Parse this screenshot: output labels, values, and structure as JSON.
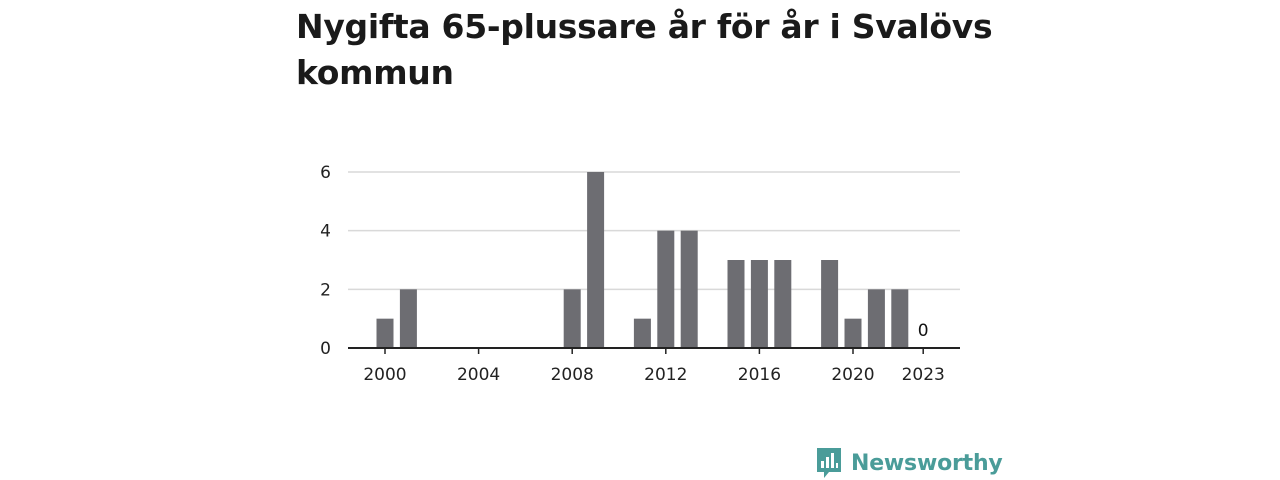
{
  "title": "Nygifta 65-plussare år för år i Svalövs kommun",
  "brand": {
    "name": "Newsworthy"
  },
  "colors": {
    "bar": "#6d6d72",
    "grid": "#d9d9d9",
    "axis": "#222222",
    "brand": "#4a9c99"
  },
  "chart_data": {
    "type": "bar",
    "title": "Nygifta 65-plussare år för år i Svalövs kommun",
    "x": [
      2000,
      2001,
      2002,
      2003,
      2004,
      2005,
      2006,
      2007,
      2008,
      2009,
      2010,
      2011,
      2012,
      2013,
      2014,
      2015,
      2016,
      2017,
      2018,
      2019,
      2020,
      2021,
      2022,
      2023
    ],
    "values": [
      1,
      2,
      0,
      0,
      0,
      0,
      0,
      0,
      2,
      6,
      0,
      1,
      4,
      4,
      0,
      3,
      3,
      3,
      0,
      3,
      1,
      2,
      2,
      0
    ],
    "xticks": [
      "2000",
      "2004",
      "2008",
      "2012",
      "2016",
      "2020",
      "2023"
    ],
    "yticks": [
      "0",
      "2",
      "4",
      "6"
    ],
    "ylim": [
      0,
      6
    ],
    "annotations": [
      {
        "x": 2023,
        "text": "0"
      }
    ],
    "xlabel": "",
    "ylabel": "",
    "grid": true
  }
}
